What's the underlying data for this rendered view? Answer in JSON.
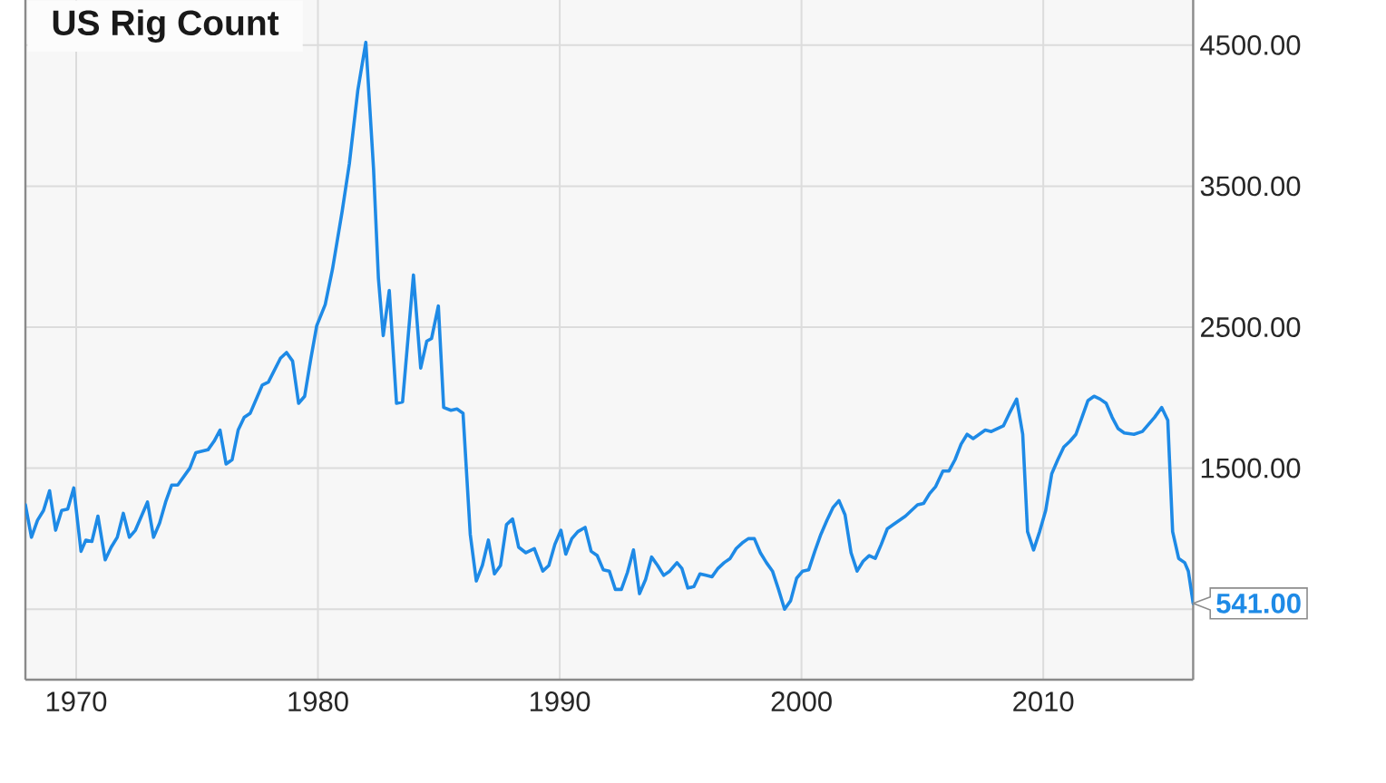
{
  "chart_data": {
    "type": "line",
    "title": "US Rig Count",
    "x": [
      1967.9,
      1968.15,
      1968.4,
      1968.65,
      1968.9,
      1969.15,
      1969.4,
      1969.65,
      1969.9,
      1970.2,
      1970.4,
      1970.65,
      1970.9,
      1971.2,
      1971.45,
      1971.7,
      1971.95,
      1972.2,
      1972.45,
      1972.7,
      1972.95,
      1973.2,
      1973.45,
      1973.7,
      1973.95,
      1974.2,
      1974.7,
      1974.95,
      1975.45,
      1975.7,
      1975.95,
      1976.2,
      1976.45,
      1976.7,
      1976.95,
      1977.2,
      1977.7,
      1977.95,
      1978.45,
      1978.7,
      1978.95,
      1979.2,
      1979.45,
      1979.7,
      1979.95,
      1980.3,
      1980.6,
      1981.0,
      1981.3,
      1981.65,
      1981.98,
      1982.3,
      1982.5,
      1982.7,
      1982.95,
      1983.25,
      1983.5,
      1983.95,
      1984.25,
      1984.5,
      1984.7,
      1984.98,
      1985.2,
      1985.5,
      1985.75,
      1986.0,
      1986.3,
      1986.55,
      1986.8,
      1987.05,
      1987.3,
      1987.55,
      1987.8,
      1988.05,
      1988.3,
      1988.6,
      1988.95,
      1989.3,
      1989.55,
      1989.8,
      1990.05,
      1990.25,
      1990.5,
      1990.75,
      1991.05,
      1991.3,
      1991.55,
      1991.8,
      1992.05,
      1992.3,
      1992.55,
      1992.8,
      1993.05,
      1993.3,
      1993.55,
      1993.8,
      1994.05,
      1994.3,
      1994.55,
      1994.85,
      1995.05,
      1995.3,
      1995.55,
      1995.8,
      1996.05,
      1996.3,
      1996.55,
      1996.8,
      1997.05,
      1997.3,
      1997.55,
      1997.8,
      1998.05,
      1998.3,
      1998.55,
      1998.8,
      1999.05,
      1999.3,
      1999.55,
      1999.8,
      2000.05,
      2000.3,
      2000.55,
      2000.8,
      2001.05,
      2001.3,
      2001.55,
      2001.8,
      2002.05,
      2002.3,
      2002.55,
      2002.8,
      2003.05,
      2003.3,
      2003.55,
      2003.8,
      2004.3,
      2004.8,
      2005.05,
      2005.3,
      2005.55,
      2005.85,
      2006.1,
      2006.35,
      2006.6,
      2006.85,
      2007.1,
      2007.35,
      2007.6,
      2007.85,
      2008.1,
      2008.35,
      2008.6,
      2008.9,
      2009.15,
      2009.35,
      2009.6,
      2009.85,
      2010.1,
      2010.35,
      2010.6,
      2010.85,
      2011.1,
      2011.35,
      2011.6,
      2011.85,
      2012.1,
      2012.35,
      2012.6,
      2012.85,
      2013.1,
      2013.35,
      2013.75,
      2014.1,
      2014.35,
      2014.6,
      2014.9,
      2015.15,
      2015.35,
      2015.6,
      2015.85,
      2016.0,
      2016.2
    ],
    "values": [
      1240,
      1010,
      1130,
      1200,
      1340,
      1060,
      1200,
      1210,
      1360,
      910,
      990,
      980,
      1160,
      850,
      940,
      1010,
      1180,
      1010,
      1060,
      1160,
      1260,
      1010,
      1110,
      1260,
      1380,
      1380,
      1500,
      1610,
      1630,
      1690,
      1770,
      1530,
      1560,
      1770,
      1860,
      1890,
      2090,
      2110,
      2280,
      2320,
      2260,
      1960,
      2010,
      2270,
      2510,
      2660,
      2910,
      3320,
      3660,
      4180,
      4520,
      3620,
      2850,
      2440,
      2760,
      1960,
      1970,
      2870,
      2210,
      2400,
      2420,
      2650,
      1930,
      1910,
      1920,
      1890,
      1030,
      700,
      810,
      990,
      750,
      810,
      1100,
      1140,
      940,
      900,
      930,
      770,
      810,
      960,
      1060,
      890,
      1000,
      1050,
      1080,
      910,
      880,
      780,
      770,
      640,
      640,
      760,
      920,
      610,
      710,
      870,
      810,
      740,
      770,
      830,
      790,
      650,
      660,
      750,
      740,
      730,
      790,
      830,
      860,
      930,
      970,
      1000,
      1000,
      900,
      830,
      770,
      640,
      500,
      560,
      720,
      770,
      780,
      910,
      1030,
      1130,
      1220,
      1270,
      1170,
      900,
      770,
      840,
      880,
      860,
      960,
      1070,
      1100,
      1160,
      1240,
      1250,
      1320,
      1370,
      1480,
      1480,
      1560,
      1670,
      1740,
      1710,
      1740,
      1770,
      1760,
      1780,
      1800,
      1890,
      1990,
      1740,
      1050,
      920,
      1050,
      1200,
      1460,
      1560,
      1650,
      1690,
      1740,
      1860,
      1980,
      2010,
      1990,
      1960,
      1860,
      1780,
      1750,
      1740,
      1760,
      1810,
      1860,
      1930,
      1840,
      1050,
      860,
      830,
      770,
      541
    ],
    "color": "#1e8ae6",
    "xlim": [
      1967.9,
      2016.2
    ],
    "ylim": [
      0,
      4820
    ],
    "xticks": [
      1970,
      1980,
      1990,
      2000,
      2010
    ],
    "yticks": [
      {
        "value": 500,
        "label": null
      },
      {
        "value": 1500,
        "label": "1500.00"
      },
      {
        "value": 2500,
        "label": "2500.00"
      },
      {
        "value": 3500,
        "label": "3500.00"
      },
      {
        "value": 4500,
        "label": "4500.00"
      }
    ],
    "grid": true,
    "line_style": "solid",
    "annotations": [
      {
        "text": "541.00",
        "x": 2016.2,
        "y": 541
      }
    ]
  }
}
